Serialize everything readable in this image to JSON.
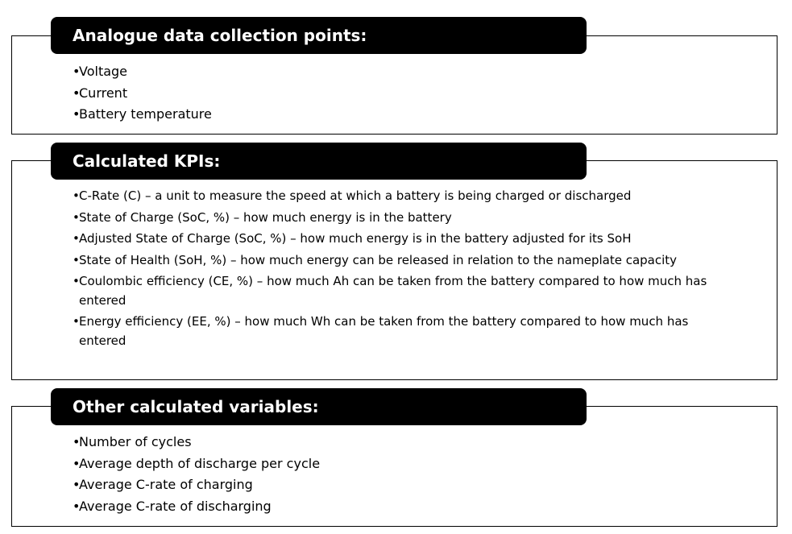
{
  "sections": [
    {
      "title": "Analogue data collection points:",
      "items": [
        "Voltage",
        "Current",
        "Battery temperature"
      ]
    },
    {
      "title": "Calculated KPIs:",
      "items": [
        "C-Rate (C) –  a unit to measure the speed at which a battery is being charged or discharged",
        "State of Charge (SoC, %) – how much energy is in the battery",
        "Adjusted State of Charge (SoC, %) – how much energy is in the battery adjusted for its SoH",
        "State of Health (SoH, %) – how much energy can be released in relation to the nameplate capacity",
        "Coulombic efficiency (CE, %) – how much Ah can be taken from the battery compared to how much has entered",
        "Energy efficiency (EE, %) – how much Wh can be taken from the battery compared to how much has entered"
      ]
    },
    {
      "title": "Other calculated variables:",
      "items": [
        "Number of cycles",
        "Average depth of discharge per cycle",
        "Average C-rate of charging",
        "Average C-rate of discharging"
      ]
    }
  ]
}
